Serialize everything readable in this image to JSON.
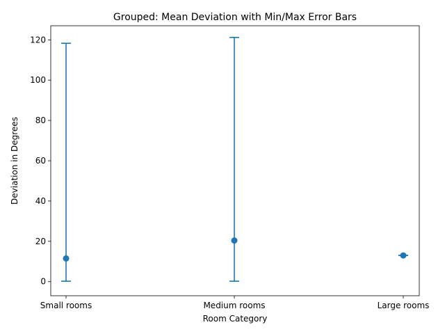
{
  "chart_data": {
    "type": "scatter",
    "title": "Grouped: Mean Deviation with Min/Max Error Bars",
    "xlabel": "Room Category",
    "ylabel": "Deviation in Degrees",
    "categories": [
      "Small rooms",
      "Medium rooms",
      "Large rooms"
    ],
    "series": [
      {
        "mean": [
          11.5,
          20.4,
          13.0
        ],
        "min": [
          0.2,
          0.2,
          13.0
        ],
        "max": [
          118.3,
          121.2,
          13.0
        ]
      }
    ],
    "ylim": [
      -7,
      127
    ],
    "yticks": [
      0,
      20,
      40,
      60,
      80,
      100,
      120
    ],
    "color": "#1f77b4",
    "grid": false,
    "legend": "none"
  }
}
